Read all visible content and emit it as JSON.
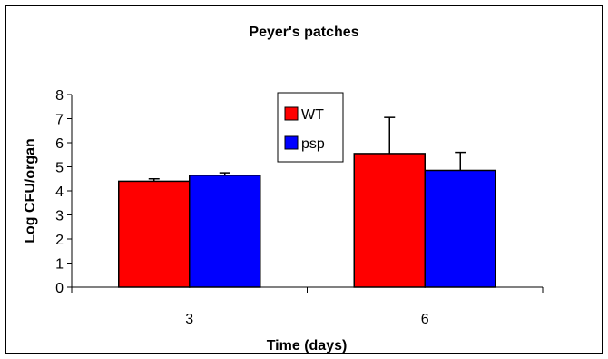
{
  "chart_data": {
    "type": "bar",
    "title": "Peyer's patches",
    "xlabel": "Time (days)",
    "ylabel": "Log CFU/organ",
    "categories": [
      "3",
      "6"
    ],
    "ylim": [
      0,
      8
    ],
    "yticks": [
      "0",
      "1",
      "2",
      "3",
      "4",
      "5",
      "6",
      "7",
      "8"
    ],
    "grid": false,
    "legend_position": "top-center",
    "series": [
      {
        "name": "WT",
        "color": "#ff0000",
        "values": [
          4.4,
          5.55
        ],
        "errors": [
          0.1,
          1.5
        ]
      },
      {
        "name": "psp",
        "color": "#0000ff",
        "values": [
          4.65,
          4.85
        ],
        "errors": [
          0.1,
          0.75
        ]
      }
    ]
  }
}
